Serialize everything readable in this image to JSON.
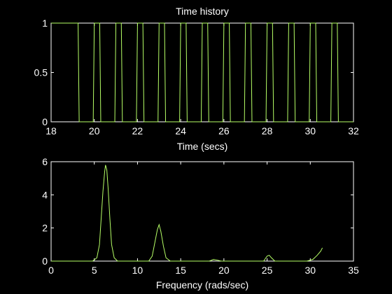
{
  "chart_data": [
    {
      "type": "line",
      "title": "Time history",
      "xlabel": "Time (secs)",
      "ylabel": "",
      "xlim": [
        18,
        32
      ],
      "ylim": [
        0,
        1
      ],
      "xticks": [
        "18",
        "20",
        "22",
        "24",
        "26",
        "28",
        "30",
        "32"
      ],
      "yticks": [
        "0",
        "0.5",
        "1"
      ],
      "grid": false,
      "line_color": "#b6ff66",
      "series": [
        {
          "x": [
            18.0,
            19.25,
            19.3,
            19.95,
            20.0,
            20.25,
            20.3,
            20.95,
            21.0,
            21.25,
            21.3,
            21.95,
            22.0,
            22.25,
            22.3,
            22.95,
            23.0,
            23.25,
            23.3,
            23.95,
            24.0,
            24.25,
            24.3,
            24.95,
            25.0,
            25.25,
            25.3,
            25.95,
            26.0,
            26.25,
            26.3,
            26.95,
            27.0,
            27.25,
            27.3,
            27.95,
            28.0,
            28.25,
            28.3,
            28.95,
            29.0,
            29.25,
            29.3,
            29.95,
            30.0,
            30.25,
            30.3,
            30.95,
            31.0,
            31.25,
            31.3,
            32.0
          ],
          "y": [
            1,
            1,
            0,
            0,
            1,
            1,
            0,
            0,
            1,
            1,
            0,
            0,
            1,
            1,
            0,
            0,
            1,
            1,
            0,
            0,
            1,
            1,
            0,
            0,
            1,
            1,
            0,
            0,
            1,
            1,
            0,
            0,
            1,
            1,
            0,
            0,
            1,
            1,
            0,
            0,
            1,
            1,
            0,
            0,
            1,
            1,
            0,
            0,
            1,
            1,
            0,
            0
          ]
        }
      ]
    },
    {
      "type": "line",
      "title": "",
      "xlabel": "Frequency (rads/sec)",
      "ylabel": "",
      "xlim": [
        0,
        35
      ],
      "ylim": [
        0,
        6
      ],
      "xticks": [
        "0",
        "5",
        "10",
        "15",
        "20",
        "25",
        "30",
        "35"
      ],
      "yticks": [
        "0",
        "2",
        "4",
        "6"
      ],
      "grid": false,
      "line_color": "#b6ff66",
      "series": [
        {
          "x": [
            0,
            4.8,
            5.3,
            5.6,
            5.8,
            6.0,
            6.2,
            6.3,
            6.45,
            6.6,
            6.8,
            7.0,
            7.3,
            7.7,
            11.3,
            11.7,
            12.0,
            12.3,
            12.5,
            12.7,
            13.0,
            13.3,
            13.8,
            18.3,
            18.8,
            19.3,
            19.7,
            24.6,
            25.0,
            25.25,
            25.5,
            25.9,
            29.6,
            30.3,
            30.8,
            31.2,
            31.4
          ],
          "y": [
            0,
            0,
            0.2,
            1.0,
            2.6,
            4.2,
            5.4,
            5.8,
            5.5,
            4.4,
            2.6,
            1.0,
            0.2,
            0,
            0,
            0.3,
            1.1,
            1.9,
            2.2,
            1.8,
            0.9,
            0.2,
            0,
            0,
            0.1,
            0.05,
            0,
            0,
            0.3,
            0.35,
            0.2,
            0,
            0,
            0.1,
            0.35,
            0.6,
            0.8
          ]
        }
      ]
    }
  ]
}
